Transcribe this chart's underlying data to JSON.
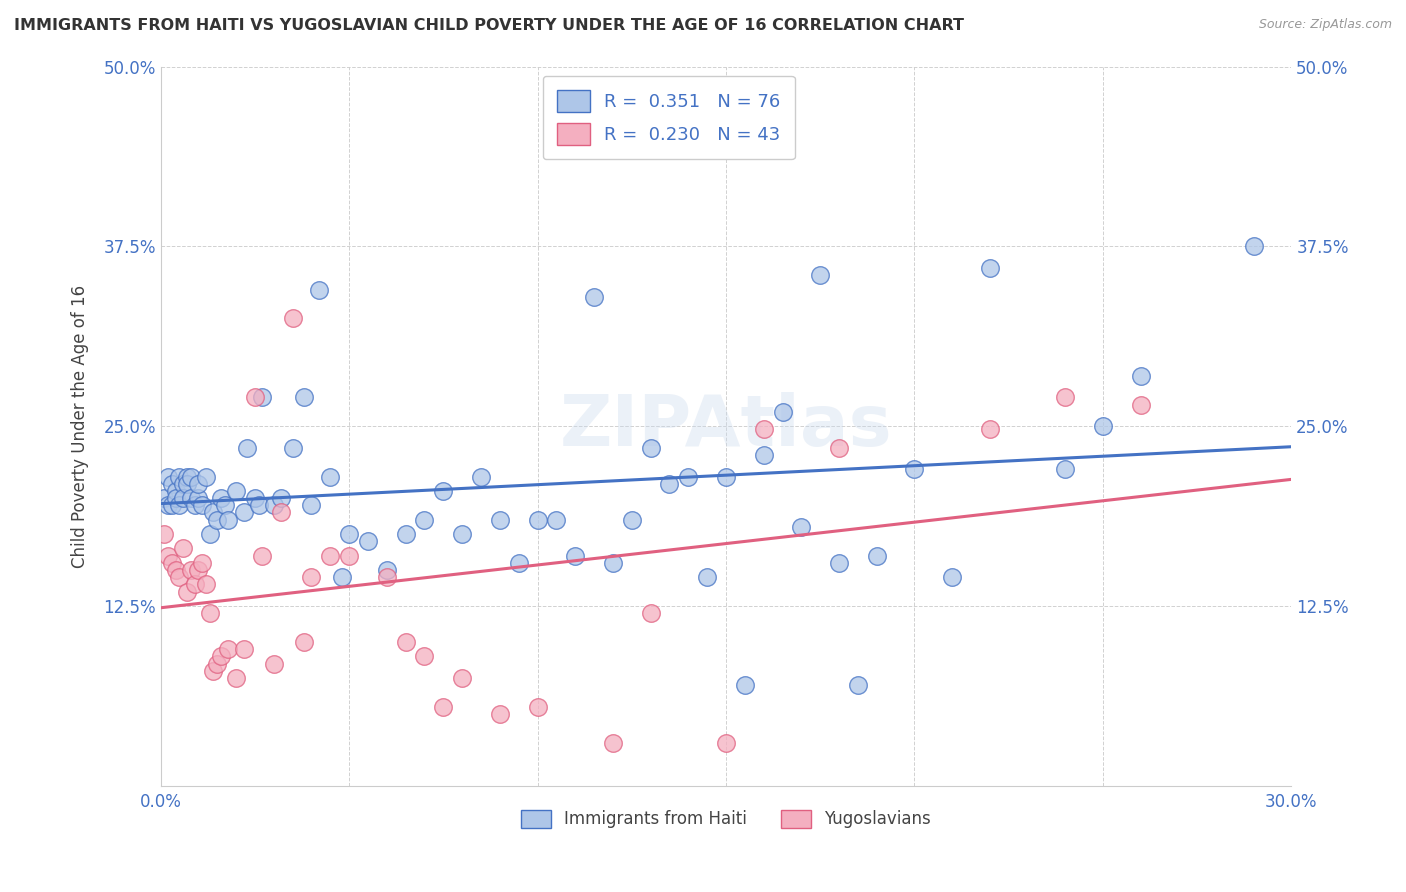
{
  "title": "IMMIGRANTS FROM HAITI VS YUGOSLAVIAN CHILD POVERTY UNDER THE AGE OF 16 CORRELATION CHART",
  "source": "Source: ZipAtlas.com",
  "ylabel": "Child Poverty Under the Age of 16",
  "xlim": [
    0.0,
    0.3
  ],
  "ylim": [
    0.0,
    0.5
  ],
  "xticks": [
    0.0,
    0.05,
    0.1,
    0.15,
    0.2,
    0.25,
    0.3
  ],
  "xticklabels": [
    "0.0%",
    "",
    "",
    "",
    "",
    "",
    "30.0%"
  ],
  "yticks": [
    0.0,
    0.125,
    0.25,
    0.375,
    0.5
  ],
  "yticklabels": [
    "",
    "12.5%",
    "25.0%",
    "37.5%",
    "50.0%"
  ],
  "legend1_label": "R =  0.351   N = 76",
  "legend2_label": "R =  0.230   N = 43",
  "haiti_color": "#aec6e8",
  "yugoslav_color": "#f4afc0",
  "haiti_line_color": "#4472c4",
  "yugoslav_line_color": "#e06080",
  "haiti_x": [
    0.001,
    0.002,
    0.002,
    0.003,
    0.003,
    0.004,
    0.004,
    0.005,
    0.005,
    0.006,
    0.006,
    0.007,
    0.007,
    0.008,
    0.008,
    0.009,
    0.01,
    0.01,
    0.011,
    0.012,
    0.013,
    0.014,
    0.015,
    0.016,
    0.017,
    0.018,
    0.02,
    0.022,
    0.023,
    0.025,
    0.026,
    0.027,
    0.03,
    0.032,
    0.035,
    0.038,
    0.04,
    0.042,
    0.045,
    0.048,
    0.05,
    0.055,
    0.06,
    0.065,
    0.07,
    0.075,
    0.08,
    0.085,
    0.09,
    0.095,
    0.1,
    0.105,
    0.11,
    0.115,
    0.12,
    0.125,
    0.13,
    0.135,
    0.14,
    0.145,
    0.15,
    0.155,
    0.16,
    0.165,
    0.17,
    0.175,
    0.18,
    0.185,
    0.19,
    0.2,
    0.21,
    0.22,
    0.24,
    0.25,
    0.26,
    0.29
  ],
  "haiti_y": [
    0.2,
    0.215,
    0.195,
    0.21,
    0.195,
    0.205,
    0.2,
    0.215,
    0.195,
    0.21,
    0.2,
    0.215,
    0.21,
    0.2,
    0.215,
    0.195,
    0.2,
    0.21,
    0.195,
    0.215,
    0.175,
    0.19,
    0.185,
    0.2,
    0.195,
    0.185,
    0.205,
    0.19,
    0.235,
    0.2,
    0.195,
    0.27,
    0.195,
    0.2,
    0.235,
    0.27,
    0.195,
    0.345,
    0.215,
    0.145,
    0.175,
    0.17,
    0.15,
    0.175,
    0.185,
    0.205,
    0.175,
    0.215,
    0.185,
    0.155,
    0.185,
    0.185,
    0.16,
    0.34,
    0.155,
    0.185,
    0.235,
    0.21,
    0.215,
    0.145,
    0.215,
    0.07,
    0.23,
    0.26,
    0.18,
    0.355,
    0.155,
    0.07,
    0.16,
    0.22,
    0.145,
    0.36,
    0.22,
    0.25,
    0.285,
    0.375
  ],
  "yugoslav_x": [
    0.001,
    0.002,
    0.003,
    0.004,
    0.005,
    0.006,
    0.007,
    0.008,
    0.009,
    0.01,
    0.011,
    0.012,
    0.013,
    0.014,
    0.015,
    0.016,
    0.018,
    0.02,
    0.022,
    0.025,
    0.027,
    0.03,
    0.032,
    0.035,
    0.038,
    0.04,
    0.045,
    0.05,
    0.06,
    0.065,
    0.07,
    0.075,
    0.08,
    0.09,
    0.1,
    0.12,
    0.13,
    0.15,
    0.16,
    0.18,
    0.22,
    0.24,
    0.26
  ],
  "yugoslav_y": [
    0.175,
    0.16,
    0.155,
    0.15,
    0.145,
    0.165,
    0.135,
    0.15,
    0.14,
    0.15,
    0.155,
    0.14,
    0.12,
    0.08,
    0.085,
    0.09,
    0.095,
    0.075,
    0.095,
    0.27,
    0.16,
    0.085,
    0.19,
    0.325,
    0.1,
    0.145,
    0.16,
    0.16,
    0.145,
    0.1,
    0.09,
    0.055,
    0.075,
    0.05,
    0.055,
    0.03,
    0.12,
    0.03,
    0.248,
    0.235,
    0.248,
    0.27,
    0.265
  ]
}
